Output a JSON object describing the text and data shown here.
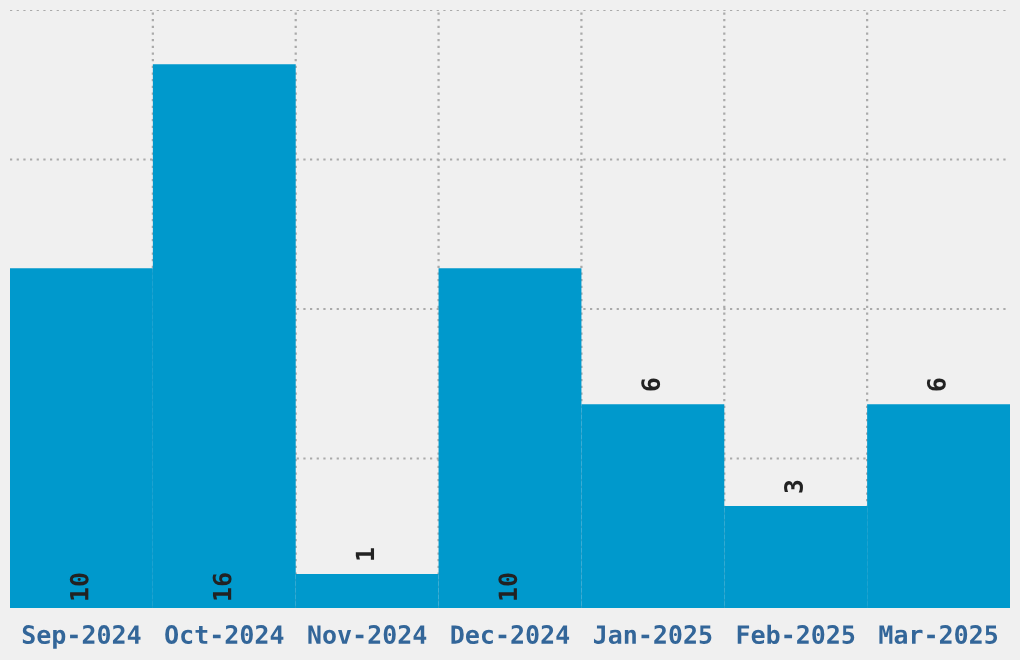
{
  "chart_data": {
    "type": "bar",
    "categories": [
      "Sep-2024",
      "Oct-2024",
      "Nov-2024",
      "Dec-2024",
      "Jan-2025",
      "Feb-2025",
      "Mar-2025"
    ],
    "values": [
      10,
      16,
      1,
      10,
      6,
      3,
      6
    ],
    "color": "#0099cc",
    "ylim": [
      0,
      17.6
    ],
    "yticks": [
      {
        "value": 4.4,
        "label": null
      },
      {
        "value": 8.8,
        "label": null
      },
      {
        "value": 13.2,
        "label": null
      },
      {
        "value": 17.6,
        "label": null
      }
    ],
    "tick_labels": "x",
    "grid": true,
    "data_labels": true
  }
}
